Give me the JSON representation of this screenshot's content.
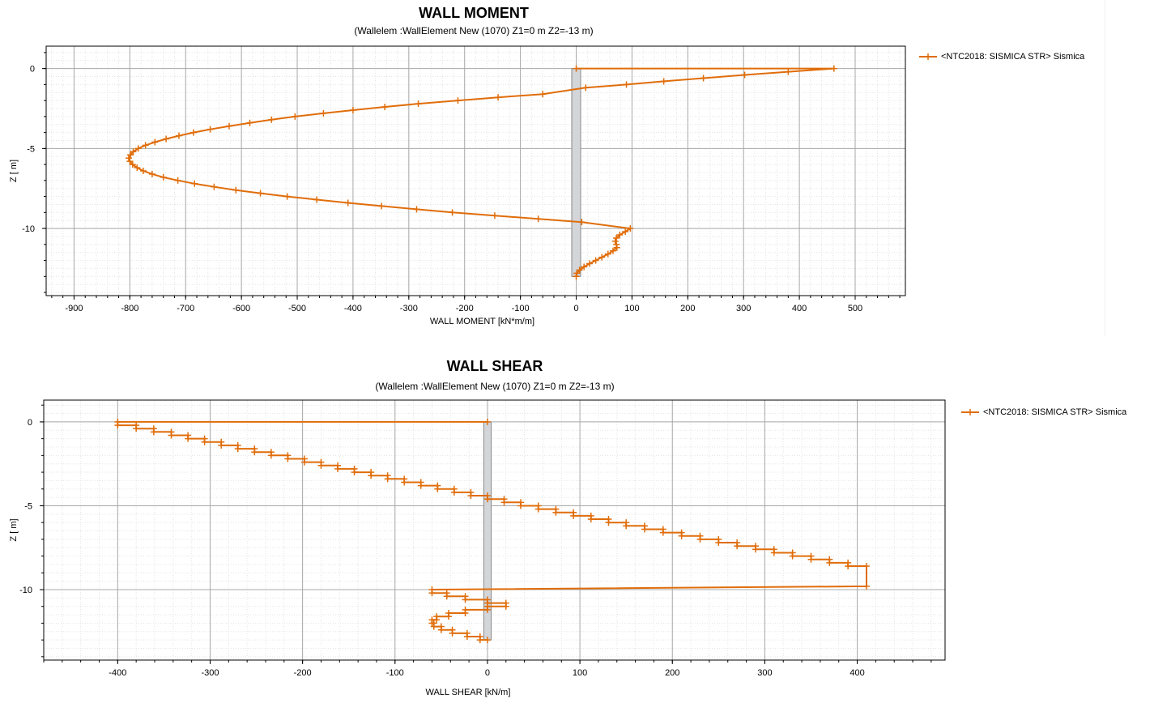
{
  "colors": {
    "series": "#E06D0A",
    "wall": "#D3D5D8",
    "wallStroke": "#8A8A8A",
    "gridMajor": "#A8A8A8",
    "gridMinor": "#E4E4E4"
  },
  "chart_data": [
    {
      "type": "line",
      "title": "WALL MOMENT",
      "subtitle": "(Wallelem :WallElement New (1070) Z1=0 m Z2=-13 m)",
      "xlabel": "WALL MOMENT [kN*m/m]",
      "ylabel": "Z [ m]",
      "xlim": [
        -950,
        590
      ],
      "ylim": [
        -14.2,
        1.4
      ],
      "xticks": [
        -900,
        -800,
        -700,
        -600,
        -500,
        -400,
        -300,
        -200,
        -100,
        0,
        100,
        200,
        300,
        400,
        500
      ],
      "yticks": [
        0,
        -5,
        -10
      ],
      "grid": true,
      "legend_position": "top-right",
      "wall": {
        "x_range": [
          -8,
          8
        ],
        "z_range": [
          0,
          -13
        ]
      },
      "series": [
        {
          "name": "<NTC2018: SISMICA STR> Sismica",
          "points": [
            [
              0,
              0
            ],
            [
              462,
              0
            ],
            [
              380,
              -0.2
            ],
            [
              302,
              -0.4
            ],
            [
              228,
              -0.6
            ],
            [
              157,
              -0.8
            ],
            [
              90,
              -1.0
            ],
            [
              17,
              -1.2
            ],
            [
              -60,
              -1.6
            ],
            [
              -140,
              -1.8
            ],
            [
              -212,
              -2.0
            ],
            [
              -283,
              -2.2
            ],
            [
              -343,
              -2.4
            ],
            [
              -400,
              -2.6
            ],
            [
              -453,
              -2.8
            ],
            [
              -504,
              -3.0
            ],
            [
              -546,
              -3.2
            ],
            [
              -585,
              -3.4
            ],
            [
              -622,
              -3.6
            ],
            [
              -656,
              -3.8
            ],
            [
              -686,
              -4.0
            ],
            [
              -712,
              -4.2
            ],
            [
              -735,
              -4.4
            ],
            [
              -755,
              -4.6
            ],
            [
              -772,
              -4.8
            ],
            [
              -785,
              -5.0
            ],
            [
              -794,
              -5.2
            ],
            [
              -799,
              -5.4
            ],
            [
              -802,
              -5.6
            ],
            [
              -800,
              -5.8
            ],
            [
              -795,
              -6.0
            ],
            [
              -787,
              -6.2
            ],
            [
              -776,
              -6.4
            ],
            [
              -760,
              -6.6
            ],
            [
              -740,
              -6.8
            ],
            [
              -714,
              -7.0
            ],
            [
              -684,
              -7.2
            ],
            [
              -649,
              -7.4
            ],
            [
              -610,
              -7.6
            ],
            [
              -566,
              -7.8
            ],
            [
              -518,
              -8.0
            ],
            [
              -465,
              -8.2
            ],
            [
              -409,
              -8.4
            ],
            [
              -349,
              -8.6
            ],
            [
              -286,
              -8.8
            ],
            [
              -222,
              -9.0
            ],
            [
              -146,
              -9.2
            ],
            [
              -68,
              -9.4
            ],
            [
              10,
              -9.6
            ],
            [
              97,
              -10.0
            ],
            [
              88,
              -10.2
            ],
            [
              78,
              -10.4
            ],
            [
              72,
              -10.6
            ],
            [
              70,
              -10.8
            ],
            [
              72,
              -11.0
            ],
            [
              73,
              -11.2
            ],
            [
              66,
              -11.4
            ],
            [
              57,
              -11.6
            ],
            [
              46,
              -11.8
            ],
            [
              35,
              -12.0
            ],
            [
              24,
              -12.2
            ],
            [
              14,
              -12.4
            ],
            [
              6,
              -12.6
            ],
            [
              1,
              -12.8
            ],
            [
              0,
              -13.0
            ]
          ]
        }
      ]
    },
    {
      "type": "line",
      "title": "WALL SHEAR",
      "subtitle": "(Wallelem :WallElement New (1070) Z1=0 m Z2=-13 m)",
      "xlabel": "WALL SHEAR [kN/m]",
      "ylabel": "Z [ m]",
      "xlim": [
        -480,
        495
      ],
      "ylim": [
        -14.2,
        1.3
      ],
      "xticks": [
        -400,
        -300,
        -200,
        -100,
        0,
        100,
        200,
        300,
        400
      ],
      "yticks": [
        0,
        -5,
        -10
      ],
      "grid": true,
      "legend_position": "top-right",
      "wall": {
        "x_range": [
          -4,
          4
        ],
        "z_range": [
          0,
          -13
        ]
      },
      "series": [
        {
          "name": "<NTC2018: SISMICA STR> Sismica",
          "points": [
            [
              0,
              0
            ],
            [
              -400,
              0
            ],
            [
              -400,
              -0.2
            ],
            [
              -380,
              -0.2
            ],
            [
              -380,
              -0.4
            ],
            [
              -361,
              -0.4
            ],
            [
              -361,
              -0.6
            ],
            [
              -342,
              -0.6
            ],
            [
              -342,
              -0.8
            ],
            [
              -324,
              -0.8
            ],
            [
              -324,
              -1.0
            ],
            [
              -306,
              -1.0
            ],
            [
              -306,
              -1.2
            ],
            [
              -288,
              -1.2
            ],
            [
              -288,
              -1.4
            ],
            [
              -270,
              -1.4
            ],
            [
              -270,
              -1.6
            ],
            [
              -252,
              -1.6
            ],
            [
              -252,
              -1.8
            ],
            [
              -234,
              -1.8
            ],
            [
              -234,
              -2.0
            ],
            [
              -216,
              -2.0
            ],
            [
              -216,
              -2.2
            ],
            [
              -198,
              -2.2
            ],
            [
              -198,
              -2.4
            ],
            [
              -180,
              -2.4
            ],
            [
              -180,
              -2.6
            ],
            [
              -162,
              -2.6
            ],
            [
              -162,
              -2.8
            ],
            [
              -144,
              -2.8
            ],
            [
              -144,
              -3.0
            ],
            [
              -126,
              -3.0
            ],
            [
              -126,
              -3.2
            ],
            [
              -108,
              -3.2
            ],
            [
              -108,
              -3.4
            ],
            [
              -90,
              -3.4
            ],
            [
              -90,
              -3.6
            ],
            [
              -72,
              -3.6
            ],
            [
              -72,
              -3.8
            ],
            [
              -54,
              -3.8
            ],
            [
              -54,
              -4.0
            ],
            [
              -36,
              -4.0
            ],
            [
              -36,
              -4.2
            ],
            [
              -18,
              -4.2
            ],
            [
              -18,
              -4.4
            ],
            [
              0,
              -4.4
            ],
            [
              0,
              -4.6
            ],
            [
              18,
              -4.6
            ],
            [
              18,
              -4.8
            ],
            [
              36,
              -4.8
            ],
            [
              36,
              -5.0
            ],
            [
              55,
              -5.0
            ],
            [
              55,
              -5.2
            ],
            [
              74,
              -5.2
            ],
            [
              74,
              -5.4
            ],
            [
              93,
              -5.4
            ],
            [
              93,
              -5.6
            ],
            [
              112,
              -5.6
            ],
            [
              112,
              -5.8
            ],
            [
              131,
              -5.8
            ],
            [
              131,
              -6.0
            ],
            [
              150,
              -6.0
            ],
            [
              150,
              -6.2
            ],
            [
              170,
              -6.2
            ],
            [
              170,
              -6.4
            ],
            [
              190,
              -6.4
            ],
            [
              190,
              -6.6
            ],
            [
              210,
              -6.6
            ],
            [
              210,
              -6.8
            ],
            [
              230,
              -6.8
            ],
            [
              230,
              -7.0
            ],
            [
              250,
              -7.0
            ],
            [
              250,
              -7.2
            ],
            [
              270,
              -7.2
            ],
            [
              270,
              -7.4
            ],
            [
              290,
              -7.4
            ],
            [
              290,
              -7.6
            ],
            [
              310,
              -7.6
            ],
            [
              310,
              -7.8
            ],
            [
              330,
              -7.8
            ],
            [
              330,
              -8.0
            ],
            [
              350,
              -8.0
            ],
            [
              350,
              -8.2
            ],
            [
              370,
              -8.2
            ],
            [
              370,
              -8.4
            ],
            [
              390,
              -8.4
            ],
            [
              390,
              -8.6
            ],
            [
              410,
              -8.6
            ],
            [
              410,
              -9.8
            ],
            [
              -60,
              -10.0
            ],
            [
              -60,
              -10.2
            ],
            [
              -44,
              -10.2
            ],
            [
              -44,
              -10.4
            ],
            [
              -24,
              -10.4
            ],
            [
              -24,
              -10.6
            ],
            [
              0,
              -10.6
            ],
            [
              0,
              -10.8
            ],
            [
              20,
              -10.8
            ],
            [
              20,
              -11.0
            ],
            [
              0,
              -11.0
            ],
            [
              0,
              -11.2
            ],
            [
              -24,
              -11.2
            ],
            [
              -24,
              -11.4
            ],
            [
              -42,
              -11.4
            ],
            [
              -42,
              -11.6
            ],
            [
              -55,
              -11.6
            ],
            [
              -55,
              -11.8
            ],
            [
              -60,
              -11.8
            ],
            [
              -60,
              -12.0
            ],
            [
              -58,
              -12.0
            ],
            [
              -58,
              -12.2
            ],
            [
              -50,
              -12.2
            ],
            [
              -50,
              -12.4
            ],
            [
              -38,
              -12.4
            ],
            [
              -38,
              -12.6
            ],
            [
              -22,
              -12.6
            ],
            [
              -22,
              -12.8
            ],
            [
              -8,
              -12.8
            ],
            [
              -8,
              -13.0
            ],
            [
              0,
              -13.0
            ]
          ]
        }
      ]
    }
  ]
}
